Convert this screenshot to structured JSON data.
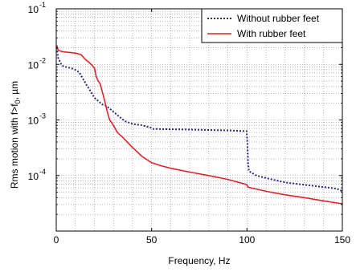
{
  "chart_data": {
    "type": "line",
    "xlabel": "Frequency, Hz",
    "ylabel": "Rms motion with f>f",
    "ylabel_sub": "0",
    "ylabel_unit": ", µm",
    "xlim": [
      0,
      150
    ],
    "ylim": [
      1e-05,
      0.1
    ],
    "yscale": "log",
    "grid": true,
    "legend_position": "top-right",
    "x_ticks": [
      {
        "value": 0,
        "label": "0"
      },
      {
        "value": 50,
        "label": "50"
      },
      {
        "value": 100,
        "label": "100"
      },
      {
        "value": 150,
        "label": "150"
      }
    ],
    "y_ticks": [
      {
        "value": 0.1,
        "base": "10",
        "exp": "-1"
      },
      {
        "value": 0.01,
        "base": "10",
        "exp": "-2"
      },
      {
        "value": 0.001,
        "base": "10",
        "exp": "-3"
      },
      {
        "value": 0.0001,
        "base": "10",
        "exp": "-4"
      }
    ],
    "series": [
      {
        "name": "Without rubber feet",
        "color": "#2b2b7a",
        "dash": "dotted",
        "points": [
          [
            0.3,
            0.02
          ],
          [
            1,
            0.013
          ],
          [
            3,
            0.0095
          ],
          [
            5,
            0.009
          ],
          [
            8,
            0.0085
          ],
          [
            10,
            0.008
          ],
          [
            12,
            0.0072
          ],
          [
            14,
            0.0055
          ],
          [
            16,
            0.0042
          ],
          [
            18,
            0.0033
          ],
          [
            20,
            0.0025
          ],
          [
            22,
            0.0022
          ],
          [
            24,
            0.0019
          ],
          [
            26,
            0.0018
          ],
          [
            28,
            0.0016
          ],
          [
            30,
            0.0014
          ],
          [
            33,
            0.00115
          ],
          [
            36,
            0.00095
          ],
          [
            40,
            0.00085
          ],
          [
            45,
            0.0008
          ],
          [
            50,
            0.00072
          ],
          [
            51,
            0.00069
          ],
          [
            60,
            0.00068
          ],
          [
            70,
            0.00067
          ],
          [
            80,
            0.00066
          ],
          [
            90,
            0.00065
          ],
          [
            99,
            0.00063
          ],
          [
            99.8,
            0.00063
          ],
          [
            100.2,
            0.0004
          ],
          [
            100.6,
            0.00016
          ],
          [
            101,
            0.00012
          ],
          [
            105,
            0.0001
          ],
          [
            110,
            9e-05
          ],
          [
            120,
            7.5e-05
          ],
          [
            130,
            6.8e-05
          ],
          [
            140,
            6.2e-05
          ],
          [
            147,
            5.8e-05
          ],
          [
            150,
            5.2e-05
          ]
        ]
      },
      {
        "name": "With rubber feet",
        "color": "#e0222b",
        "dash": "solid",
        "points": [
          [
            0.3,
            0.022
          ],
          [
            1,
            0.018
          ],
          [
            3,
            0.017
          ],
          [
            6,
            0.0165
          ],
          [
            10,
            0.016
          ],
          [
            13,
            0.015
          ],
          [
            15,
            0.0125
          ],
          [
            17,
            0.011
          ],
          [
            19,
            0.0095
          ],
          [
            20,
            0.0085
          ],
          [
            21,
            0.006
          ],
          [
            22,
            0.005
          ],
          [
            23,
            0.0045
          ],
          [
            25,
            0.0025
          ],
          [
            27,
            0.0013
          ],
          [
            28,
            0.001
          ],
          [
            30,
            0.0008
          ],
          [
            32,
            0.0006
          ],
          [
            35,
            0.00048
          ],
          [
            40,
            0.00032
          ],
          [
            45,
            0.00022
          ],
          [
            50,
            0.00017
          ],
          [
            55,
            0.00015
          ],
          [
            60,
            0.000135
          ],
          [
            70,
            0.000115
          ],
          [
            80,
            0.0001
          ],
          [
            90,
            8.5e-05
          ],
          [
            99,
            7e-05
          ],
          [
            100,
            6.8e-05
          ],
          [
            100.5,
            6.2e-05
          ],
          [
            102,
            6e-05
          ],
          [
            110,
            5.2e-05
          ],
          [
            120,
            4.5e-05
          ],
          [
            130,
            4e-05
          ],
          [
            140,
            3.5e-05
          ],
          [
            150,
            3.1e-05
          ]
        ]
      }
    ]
  }
}
